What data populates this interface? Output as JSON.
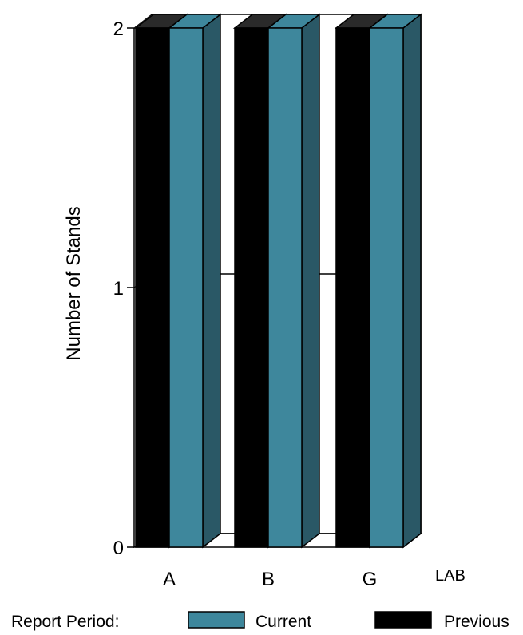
{
  "chart_data": {
    "type": "bar",
    "style": "3d-clustered",
    "categories": [
      "A",
      "B",
      "G"
    ],
    "series": [
      {
        "name": "Previous",
        "values": [
          2,
          2,
          2
        ],
        "color": "#000000"
      },
      {
        "name": "Current",
        "values": [
          2,
          2,
          2
        ],
        "color": "#3e879c"
      }
    ],
    "ylabel": "Number of Stands",
    "xlabel": "LAB",
    "ylim": [
      0,
      2
    ],
    "yticks": [
      "0",
      "1",
      "2"
    ],
    "legend_title": "Report Period:",
    "legend_placement": "bottom",
    "grid": false
  },
  "colors": {
    "current_face": "#3e879c",
    "current_side": "#2a5866",
    "previous_face": "#000000",
    "previous_top": "#2a2a2a",
    "wall": "#ffffff"
  }
}
